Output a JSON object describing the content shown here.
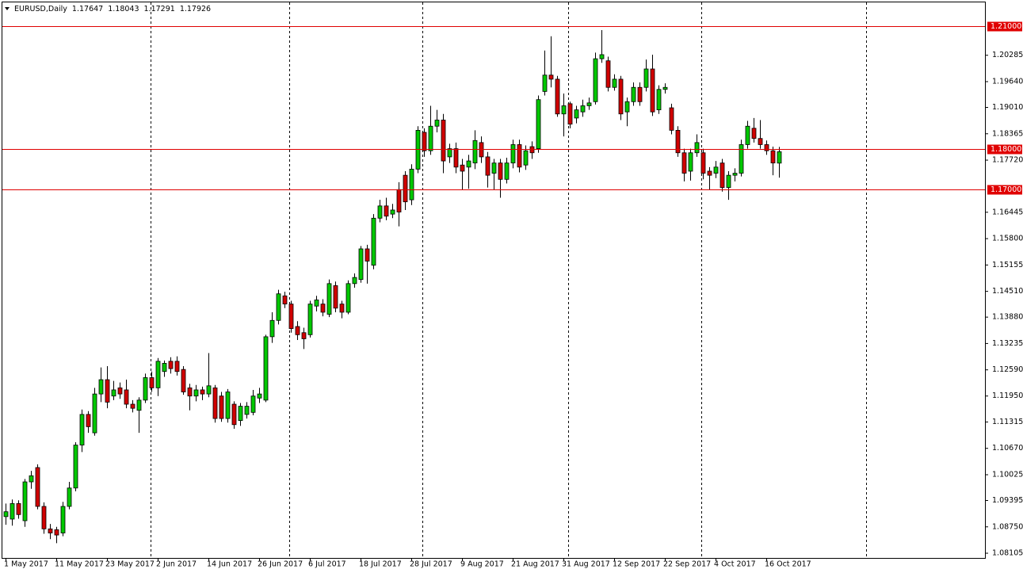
{
  "chart_data": {
    "type": "candlestick",
    "title": "EURUSD,Daily",
    "categories": [
      "1 May 2017",
      null,
      null,
      null,
      null,
      null,
      null,
      null,
      "11 May 2017",
      null,
      null,
      null,
      null,
      null,
      null,
      null,
      "23 May 2017",
      null,
      null,
      null,
      null,
      null,
      null,
      null,
      "2 Jun 2017",
      null,
      null,
      null,
      null,
      null,
      null,
      null,
      "14 Jun 2017",
      null,
      null,
      null,
      null,
      null,
      null,
      null,
      "26 Jun 2017",
      null,
      null,
      null,
      null,
      null,
      null,
      null,
      "6 Jul 2017",
      null,
      null,
      null,
      null,
      null,
      null,
      null,
      "18 Jul 2017",
      null,
      null,
      null,
      null,
      null,
      null,
      null,
      "28 Jul 2017",
      null,
      null,
      null,
      null,
      null,
      null,
      null,
      "9 Aug 2017",
      null,
      null,
      null,
      null,
      null,
      null,
      null,
      "21 Aug 2017",
      null,
      null,
      null,
      null,
      null,
      null,
      null,
      "31 Aug 2017",
      null,
      null,
      null,
      null,
      null,
      null,
      null,
      "12 Sep 2017",
      null,
      null,
      null,
      null,
      null,
      null,
      null,
      "22 Sep 2017",
      null,
      null,
      null,
      null,
      null,
      null,
      null,
      "4 Oct 2017",
      null,
      null,
      null,
      null,
      null,
      null,
      null,
      "16 Oct 2017",
      null,
      null
    ],
    "open": [
      1.09,
      1.0894,
      1.0932,
      1.089,
      1.0985,
      1.102,
      1.0925,
      1.087,
      1.0868,
      1.086,
      1.0925,
      1.097,
      1.1075,
      1.115,
      1.1105,
      1.12,
      1.1235,
      1.1195,
      1.1215,
      1.121,
      1.1175,
      1.116,
      1.1185,
      1.124,
      1.1215,
      1.1255,
      1.128,
      1.128,
      1.126,
      1.1215,
      1.1195,
      1.121,
      1.12,
      1.1215,
      1.1195,
      1.114,
      1.1175,
      1.1135,
      1.115,
      1.1155,
      1.119,
      1.1185,
      1.134,
      1.138,
      1.144,
      1.142,
      1.1365,
      1.135,
      1.1345,
      1.1415,
      1.142,
      1.1395,
      1.1465,
      1.142,
      1.14,
      1.147,
      1.148,
      1.1555,
      1.1515,
      1.163,
      1.166,
      1.164,
      1.17,
      1.1735,
      1.1675,
      1.175,
      1.184,
      1.1795,
      1.1855,
      1.187,
      1.178,
      1.18,
      1.176,
      1.1755,
      1.1765,
      1.1815,
      1.178,
      1.174,
      1.1765,
      1.1725,
      1.1765,
      1.181,
      1.176,
      1.1805,
      1.18,
      1.194,
      1.198,
      1.197,
      1.1885,
      1.191,
      1.1875,
      1.189,
      1.1905,
      1.1915,
      1.202,
      1.2015,
      1.195,
      1.197,
      1.189,
      1.1915,
      1.195,
      1.195,
      1.1995,
      1.1895,
      1.1945,
      1.19,
      1.1845,
      1.179,
      1.1745,
      1.179,
      1.179,
      1.1745,
      1.174,
      1.1765,
      1.1705,
      1.1735,
      1.174,
      1.181,
      1.185,
      1.1825,
      1.181,
      1.1795,
      1.17647
    ],
    "high": [
      1.0932,
      1.0942,
      1.094,
      1.0992,
      1.1012,
      1.1028,
      1.0935,
      1.0882,
      1.0875,
      1.0936,
      1.0985,
      1.1082,
      1.1162,
      1.1158,
      1.1215,
      1.1265,
      1.1268,
      1.1232,
      1.1228,
      1.1235,
      1.1185,
      1.1192,
      1.125,
      1.1255,
      1.1288,
      1.1282,
      1.129,
      1.1292,
      1.1268,
      1.1225,
      1.1222,
      1.1218,
      1.13,
      1.1222,
      1.1205,
      1.1212,
      1.1182,
      1.1178,
      1.118,
      1.121,
      1.1215,
      1.1345,
      1.14,
      1.1455,
      1.145,
      1.1428,
      1.1378,
      1.1362,
      1.1428,
      1.144,
      1.1432,
      1.148,
      1.1475,
      1.1428,
      1.1478,
      1.1495,
      1.1562,
      1.1565,
      1.164,
      1.1675,
      1.168,
      1.1665,
      1.1718,
      1.1745,
      1.1762,
      1.1855,
      1.185,
      1.1905,
      1.1895,
      1.1885,
      1.1812,
      1.1815,
      1.1775,
      1.1785,
      1.1845,
      1.183,
      1.1792,
      1.1775,
      1.1775,
      1.1778,
      1.1822,
      1.1822,
      1.1808,
      1.1818,
      1.193,
      1.204,
      1.2075,
      1.1978,
      1.1935,
      1.1915,
      1.1905,
      1.192,
      1.1925,
      1.2035,
      1.209,
      1.2025,
      1.1982,
      1.1978,
      1.1925,
      1.1962,
      1.1962,
      1.2018,
      1.203,
      1.1955,
      1.196,
      1.191,
      1.1855,
      1.18,
      1.18,
      1.1835,
      1.18,
      1.1755,
      1.177,
      1.1775,
      1.1745,
      1.1752,
      1.1822,
      1.1868,
      1.1875,
      1.187,
      1.182,
      1.1805,
      1.18043
    ],
    "low": [
      1.088,
      1.0878,
      1.0895,
      1.0875,
      1.0968,
      1.0918,
      1.0858,
      1.0845,
      1.0835,
      1.0852,
      1.0918,
      1.0962,
      1.1058,
      1.1105,
      1.1098,
      1.118,
      1.1165,
      1.1185,
      1.1188,
      1.1165,
      1.1155,
      1.1105,
      1.1178,
      1.1205,
      1.1195,
      1.1242,
      1.125,
      1.1245,
      1.1198,
      1.116,
      1.1182,
      1.1185,
      1.1192,
      1.113,
      1.1132,
      1.113,
      1.1115,
      1.1122,
      1.114,
      1.1148,
      1.1178,
      1.118,
      1.1325,
      1.137,
      1.141,
      1.135,
      1.1332,
      1.131,
      1.1338,
      1.1402,
      1.139,
      1.1388,
      1.14,
      1.1385,
      1.1395,
      1.146,
      1.1472,
      1.147,
      1.1505,
      1.162,
      1.1625,
      1.163,
      1.161,
      1.165,
      1.1662,
      1.174,
      1.178,
      1.1785,
      1.184,
      1.174,
      1.1765,
      1.174,
      1.17,
      1.1702,
      1.175,
      1.1765,
      1.1705,
      1.17,
      1.168,
      1.1715,
      1.1752,
      1.1742,
      1.1748,
      1.1775,
      1.179,
      1.193,
      1.195,
      1.1878,
      1.183,
      1.185,
      1.1862,
      1.1878,
      1.1895,
      1.1908,
      1.201,
      1.194,
      1.1942,
      1.187,
      1.1855,
      1.1905,
      1.1905,
      1.194,
      1.188,
      1.1885,
      1.1935,
      1.1835,
      1.178,
      1.172,
      1.1722,
      1.178,
      1.1725,
      1.17,
      1.1728,
      1.1695,
      1.1675,
      1.172,
      1.1732,
      1.18,
      1.1815,
      1.18,
      1.1785,
      1.1735,
      1.17291
    ],
    "close": [
      1.0912,
      1.0932,
      1.0905,
      1.0985,
      1.1,
      1.0925,
      1.087,
      1.086,
      1.0855,
      1.0925,
      1.097,
      1.1075,
      1.115,
      1.112,
      1.12,
      1.1235,
      1.118,
      1.121,
      1.12,
      1.1175,
      1.1165,
      1.1185,
      1.124,
      1.1215,
      1.128,
      1.1275,
      1.1262,
      1.1255,
      1.1205,
      1.1195,
      1.121,
      1.12,
      1.122,
      1.114,
      1.114,
      1.1205,
      1.1125,
      1.117,
      1.117,
      1.1195,
      1.12,
      1.134,
      1.138,
      1.1445,
      1.142,
      1.136,
      1.1345,
      1.1335,
      1.142,
      1.143,
      1.14,
      1.147,
      1.141,
      1.14,
      1.147,
      1.1485,
      1.1555,
      1.1525,
      1.163,
      1.166,
      1.1635,
      1.165,
      1.1645,
      1.167,
      1.175,
      1.1845,
      1.1795,
      1.1855,
      1.187,
      1.177,
      1.18,
      1.1755,
      1.1745,
      1.177,
      1.182,
      1.178,
      1.1735,
      1.1765,
      1.1725,
      1.1765,
      1.181,
      1.1755,
      1.1795,
      1.179,
      1.192,
      1.198,
      1.197,
      1.1885,
      1.1905,
      1.186,
      1.1895,
      1.1905,
      1.1912,
      1.202,
      1.203,
      1.195,
      1.197,
      1.1885,
      1.1915,
      1.195,
      1.1915,
      1.1995,
      1.189,
      1.1945,
      1.195,
      1.1845,
      1.179,
      1.174,
      1.179,
      1.1815,
      1.174,
      1.1735,
      1.1755,
      1.1705,
      1.1735,
      1.174,
      1.181,
      1.1855,
      1.1825,
      1.181,
      1.1795,
      1.1765,
      1.17926
    ],
    "up_color": "#00c800",
    "down_color": "#d00000",
    "ylim": [
      1.0797,
      1.2154
    ],
    "yticks": [
      1.20285,
      {
        "value": 1.1964,
        "label": "1.19640"
      },
      {
        "value": 1.1901,
        "label": "1.19010"
      },
      1.18365,
      {
        "value": 1.1772,
        "label": "1.17720"
      },
      1.16445,
      {
        "value": 1.158,
        "label": "1.15800"
      },
      1.15155,
      {
        "value": 1.1451,
        "label": "1.14510"
      },
      {
        "value": 1.1388,
        "label": "1.13880"
      },
      1.13235,
      {
        "value": 1.1259,
        "label": "1.12590"
      },
      {
        "value": 1.1195,
        "label": "1.11950"
      },
      1.11315,
      {
        "value": 1.1067,
        "label": "1.10670"
      },
      1.10025,
      1.09395,
      {
        "value": 1.0875,
        "label": "1.08750"
      },
      1.08105
    ],
    "levels": [
      {
        "value": 1.21,
        "label": "1.21000"
      },
      {
        "value": 1.18,
        "label": "1.18000"
      },
      {
        "value": 1.17,
        "label": "1.17000"
      }
    ],
    "level_color": "#e00000"
  }
}
